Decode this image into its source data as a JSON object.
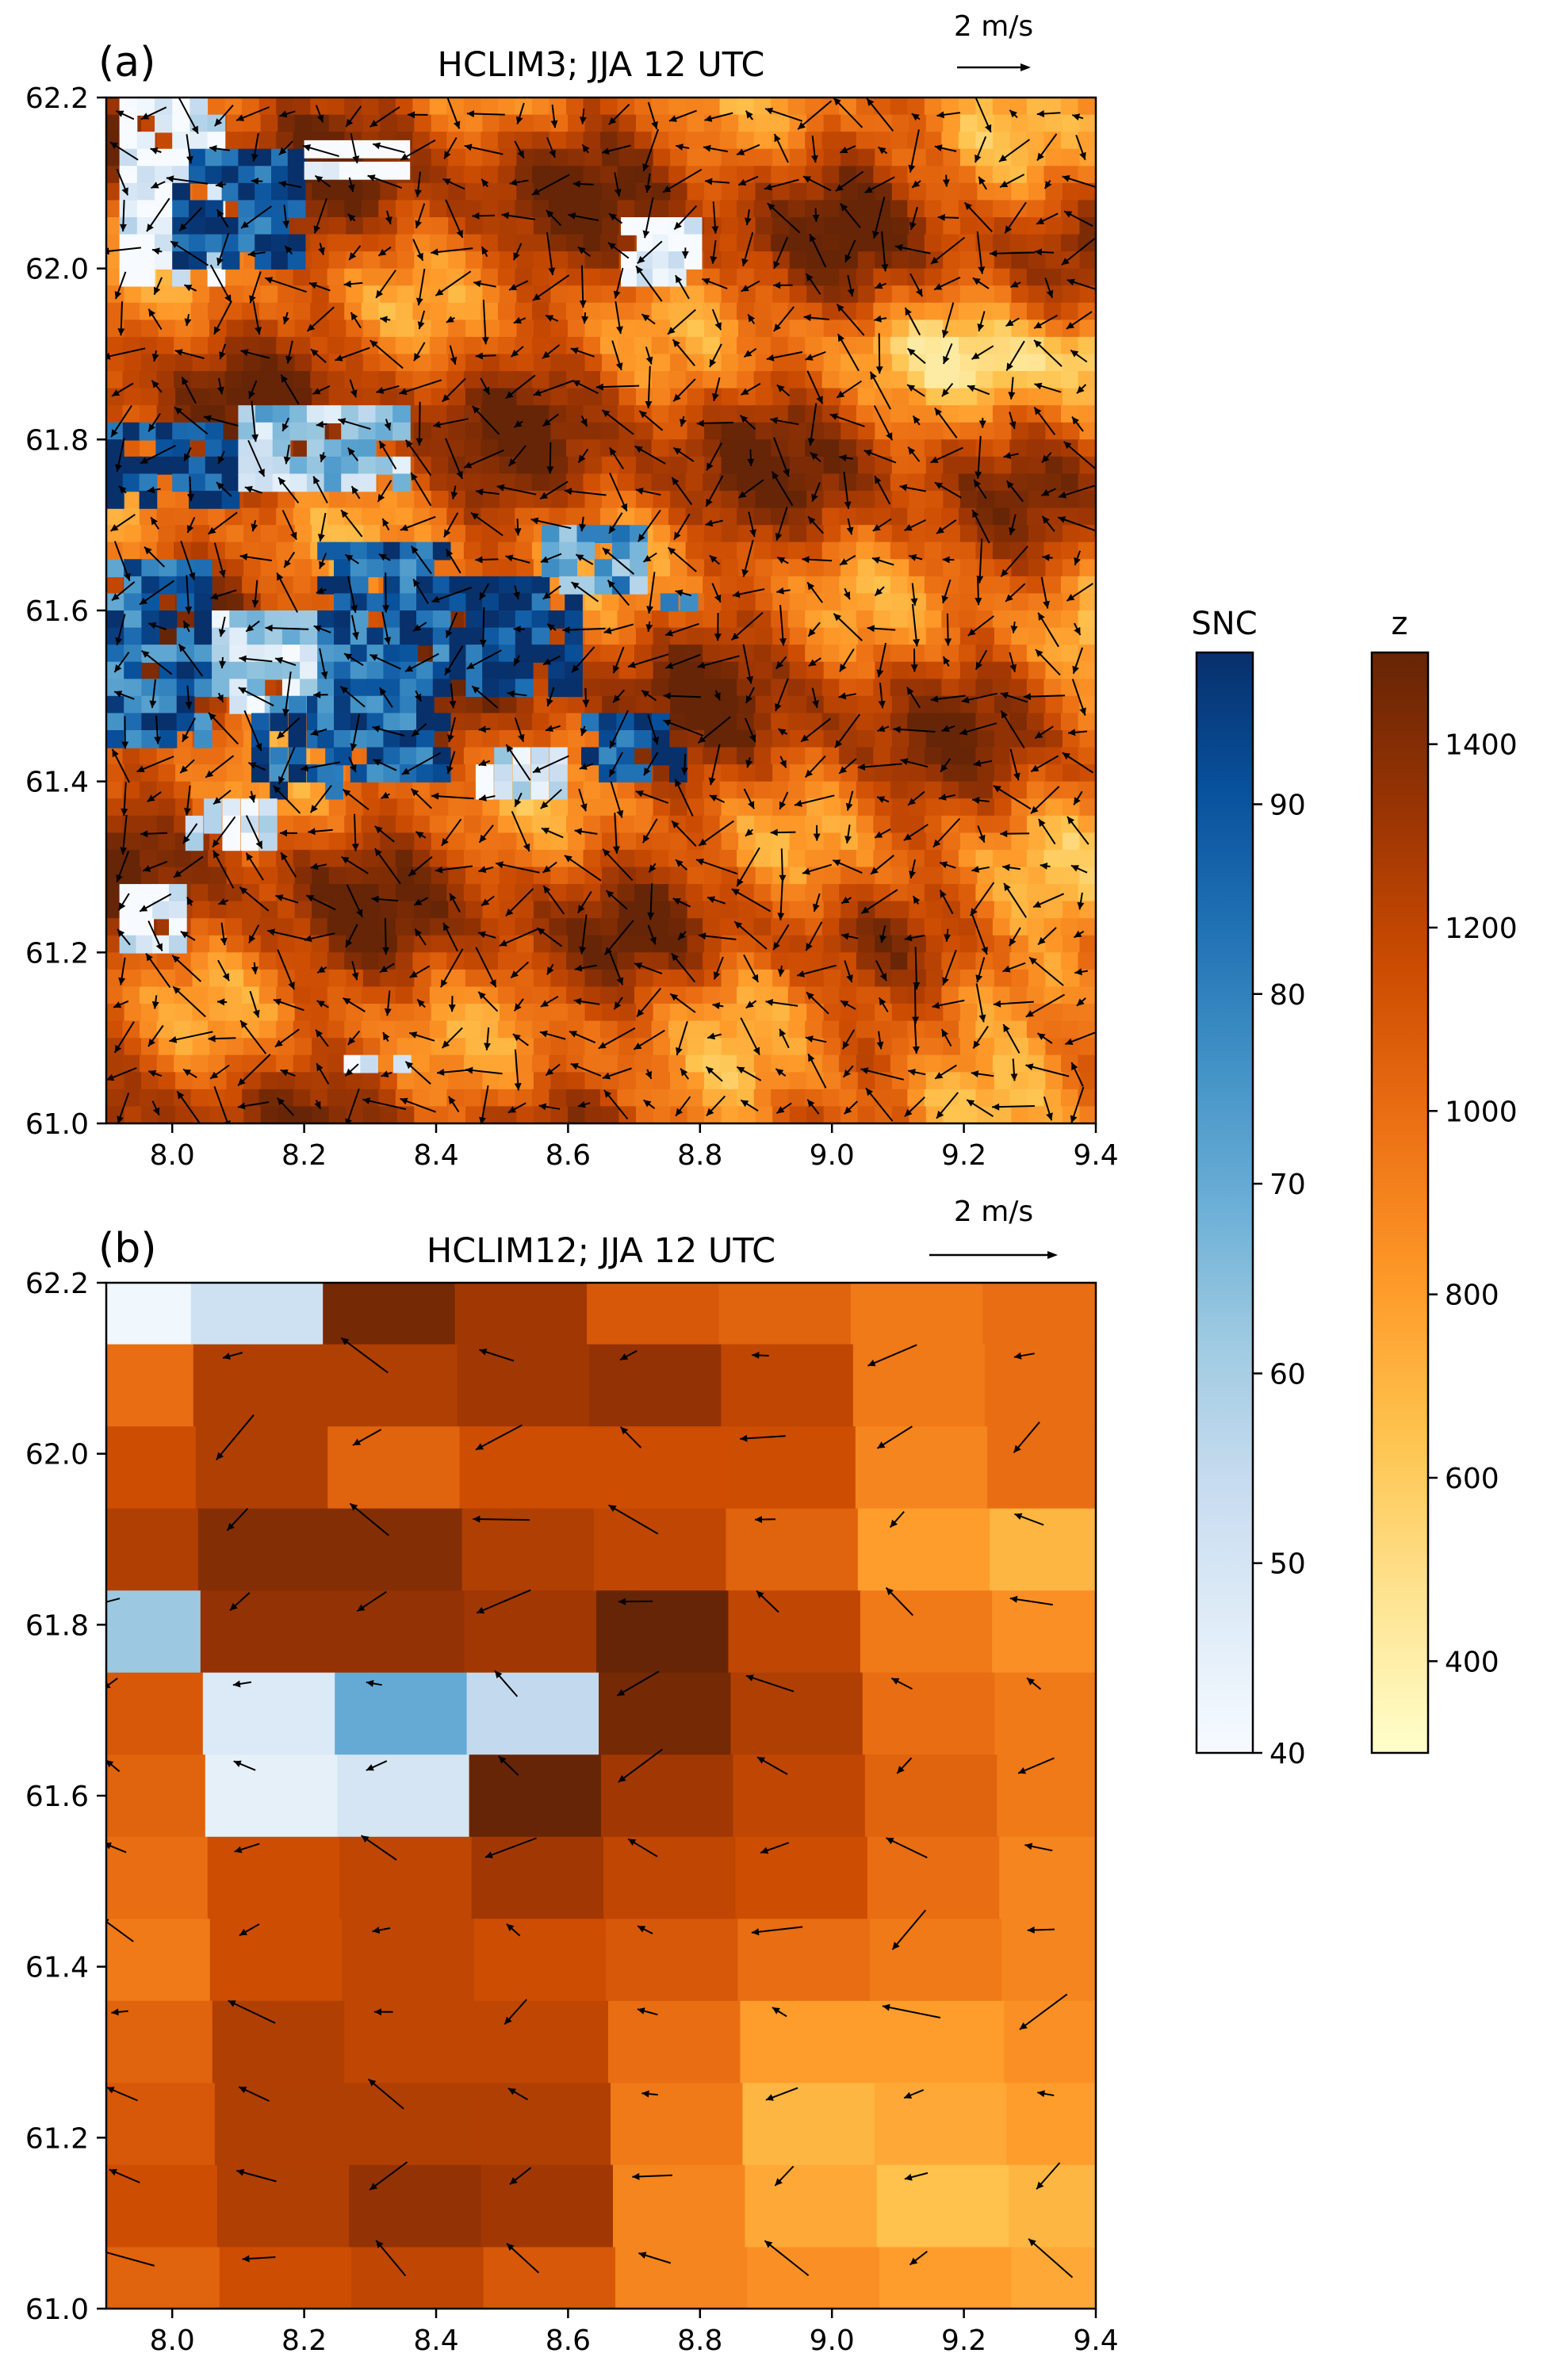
{
  "chart_data": [
    {
      "panel_label": "(a)",
      "title": "HCLIM3; JJA 12 UTC",
      "type": "heatmap",
      "overlay": "quiver",
      "scale_arrow_label": "2 m/s",
      "xlim": [
        7.9,
        9.4
      ],
      "ylim": [
        61.0,
        62.2
      ],
      "xticks": [
        "8.0",
        "8.2",
        "8.4",
        "8.6",
        "8.8",
        "9.0",
        "9.2",
        "9.4"
      ],
      "yticks": [
        "61.0",
        "61.2",
        "61.4",
        "61.6",
        "61.8",
        "62.0",
        "62.2"
      ],
      "grid_resolution": "fine",
      "snow_patches": [
        {
          "lon": [
            7.92,
            8.08
          ],
          "lat": [
            61.98,
            62.2
          ],
          "snc": 45
        },
        {
          "lon": [
            8.0,
            8.2
          ],
          "lat": [
            62.0,
            62.14
          ],
          "snc": 92
        },
        {
          "lon": [
            8.2,
            8.36
          ],
          "lat": [
            62.1,
            62.15
          ],
          "snc": 40
        },
        {
          "lon": [
            8.68,
            8.8
          ],
          "lat": [
            61.98,
            62.06
          ],
          "snc": 42
        },
        {
          "lon": [
            7.9,
            8.1
          ],
          "lat": [
            61.72,
            61.82
          ],
          "snc": 95
        },
        {
          "lon": [
            8.1,
            8.36
          ],
          "lat": [
            61.74,
            61.84
          ],
          "snc": 60
        },
        {
          "lon": [
            7.9,
            8.06
          ],
          "lat": [
            61.44,
            61.66
          ],
          "snc": 85
        },
        {
          "lon": [
            8.06,
            8.22
          ],
          "lat": [
            61.48,
            61.6
          ],
          "snc": 55
        },
        {
          "lon": [
            8.12,
            8.26
          ],
          "lat": [
            61.38,
            61.5
          ],
          "snc": 90
        },
        {
          "lon": [
            8.22,
            8.42
          ],
          "lat": [
            61.4,
            61.68
          ],
          "snc": 88
        },
        {
          "lon": [
            8.42,
            8.62
          ],
          "lat": [
            61.5,
            61.64
          ],
          "snc": 95
        },
        {
          "lon": [
            8.56,
            8.72
          ],
          "lat": [
            61.62,
            61.7
          ],
          "snc": 72
        },
        {
          "lon": [
            8.62,
            8.78
          ],
          "lat": [
            61.4,
            61.48
          ],
          "snc": 92
        },
        {
          "lon": [
            8.46,
            8.6
          ],
          "lat": [
            61.38,
            61.44
          ],
          "snc": 50
        },
        {
          "lon": [
            8.02,
            8.16
          ],
          "lat": [
            61.32,
            61.38
          ],
          "snc": 45
        },
        {
          "lon": [
            7.92,
            8.02
          ],
          "lat": [
            61.2,
            61.28
          ],
          "snc": 45
        },
        {
          "lon": [
            8.26,
            8.36
          ],
          "lat": [
            61.06,
            61.08
          ],
          "snc": 40
        },
        {
          "lon": [
            8.74,
            8.8
          ],
          "lat": [
            61.6,
            61.62
          ],
          "snc": 90
        }
      ]
    },
    {
      "panel_label": "(b)",
      "title": "HCLIM12; JJA 12 UTC",
      "type": "heatmap",
      "overlay": "quiver",
      "scale_arrow_label": "2 m/s",
      "xlim": [
        7.9,
        9.4
      ],
      "ylim": [
        61.0,
        62.2
      ],
      "xticks": [
        "8.0",
        "8.2",
        "8.4",
        "8.6",
        "8.8",
        "9.0",
        "9.2",
        "9.4"
      ],
      "yticks": [
        "61.0",
        "61.2",
        "61.4",
        "61.6",
        "61.8",
        "62.0",
        "62.2"
      ],
      "grid_resolution": "coarse",
      "z_grid": [
        [
          1000,
          1250,
          1450,
          1300,
          1100,
          1050,
          950,
          1000
        ],
        [
          1000,
          1250,
          1250,
          1300,
          1350,
          1200,
          950,
          1000
        ],
        [
          1150,
          1250,
          1050,
          1150,
          1150,
          1150,
          900,
          1000
        ],
        [
          1250,
          1400,
          1400,
          1250,
          1200,
          1050,
          800,
          700
        ],
        [
          1250,
          1350,
          1350,
          1300,
          1500,
          1200,
          950,
          850
        ],
        [
          1100,
          1200,
          1150,
          1150,
          1450,
          1250,
          1000,
          950
        ],
        [
          1050,
          1250,
          1200,
          1500,
          1300,
          1200,
          1050,
          950
        ],
        [
          1000,
          1150,
          1200,
          1300,
          1200,
          1150,
          1000,
          900
        ],
        [
          950,
          1150,
          1200,
          1150,
          1100,
          1000,
          950,
          900
        ],
        [
          1050,
          1250,
          1200,
          1200,
          1000,
          800,
          800,
          850
        ],
        [
          1100,
          1250,
          1250,
          1250,
          950,
          700,
          750,
          800
        ],
        [
          1150,
          1250,
          1350,
          1300,
          900,
          750,
          650,
          700
        ],
        [
          1050,
          1150,
          1200,
          1100,
          900,
          850,
          800,
          750
        ]
      ],
      "snow_cells": [
        {
          "row": 0,
          "col": 0,
          "snc": 42
        },
        {
          "row": 0,
          "col": 1,
          "snc": 52
        },
        {
          "row": 4,
          "col": 0,
          "snc": 62
        },
        {
          "row": 5,
          "col": 1,
          "snc": 48
        },
        {
          "row": 5,
          "col": 2,
          "snc": 70
        },
        {
          "row": 5,
          "col": 3,
          "snc": 55
        },
        {
          "row": 6,
          "col": 1,
          "snc": 45
        },
        {
          "row": 6,
          "col": 2,
          "snc": 50
        }
      ]
    }
  ],
  "colorbars": {
    "snc": {
      "label": "SNC",
      "range": [
        40,
        98
      ],
      "ticks": [
        "40",
        "50",
        "60",
        "70",
        "80",
        "90"
      ]
    },
    "z": {
      "label": "z",
      "range": [
        300,
        1500
      ],
      "ticks": [
        "400",
        "600",
        "800",
        "1000",
        "1200",
        "1400"
      ]
    }
  },
  "colors": {
    "z_cmap": [
      "#ffffcc",
      "#fee391",
      "#fec44f",
      "#fe9929",
      "#ec7014",
      "#cc4c02",
      "#993404",
      "#662506"
    ],
    "snc_cmap": [
      "#f7fbff",
      "#deebf7",
      "#c6dbef",
      "#9ecae1",
      "#6baed6",
      "#4292c6",
      "#2171b5",
      "#08519c",
      "#08306b"
    ],
    "arrow": "#000000"
  }
}
